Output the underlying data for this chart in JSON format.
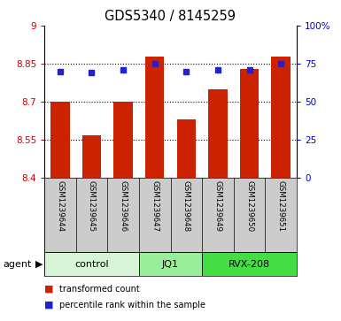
{
  "title": "GDS5340 / 8145259",
  "categories": [
    "GSM1239644",
    "GSM1239645",
    "GSM1239646",
    "GSM1239647",
    "GSM1239648",
    "GSM1239649",
    "GSM1239650",
    "GSM1239651"
  ],
  "bar_values": [
    8.7,
    8.57,
    8.7,
    8.88,
    8.63,
    8.75,
    8.83,
    8.88
  ],
  "percentile_values": [
    70,
    69,
    71,
    75,
    70,
    71,
    71,
    75
  ],
  "ylim_left": [
    8.4,
    9.0
  ],
  "ylim_right": [
    0,
    100
  ],
  "yticks_left": [
    8.4,
    8.55,
    8.7,
    8.85,
    9.0
  ],
  "ytick_labels_left": [
    "8.4",
    "8.55",
    "8.7",
    "8.85",
    "9"
  ],
  "yticks_right": [
    0,
    25,
    50,
    75,
    100
  ],
  "ytick_labels_right": [
    "0",
    "25",
    "50",
    "75",
    "100%"
  ],
  "bar_color": "#cc2200",
  "point_color": "#2222cc",
  "grid_ticks": [
    8.55,
    8.7,
    8.85
  ],
  "groups": [
    {
      "label": "control",
      "start": 0,
      "end": 3,
      "color": "#d6f5d6"
    },
    {
      "label": "JQ1",
      "start": 3,
      "end": 5,
      "color": "#99ee99"
    },
    {
      "label": "RVX-208",
      "start": 5,
      "end": 8,
      "color": "#44dd44"
    }
  ],
  "legend_items": [
    {
      "label": "transformed count",
      "color": "#cc2200"
    },
    {
      "label": "percentile rank within the sample",
      "color": "#2222cc"
    }
  ],
  "agent_label": "agent",
  "left_axis_color": "#cc0000",
  "right_axis_color": "#0000cc",
  "bar_bottom": 8.4,
  "background_color": "#ffffff",
  "label_bg_color": "#cccccc",
  "bar_width": 0.6
}
